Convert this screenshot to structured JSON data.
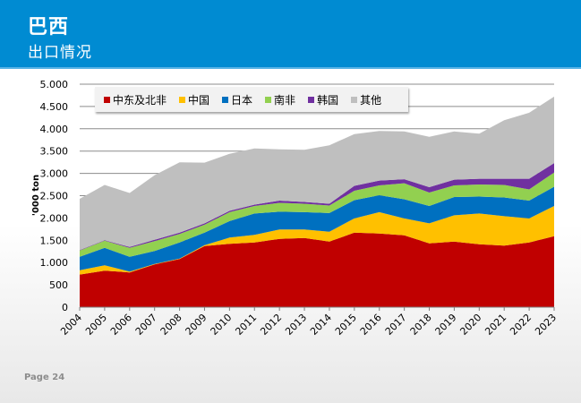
{
  "header": {
    "title": "巴西",
    "subtitle": "出口情况"
  },
  "footer": {
    "page_label": "Page 24"
  },
  "colors": {
    "header_bg": "#008bd2",
    "series": [
      "#c00000",
      "#ffc000",
      "#0070c0",
      "#92d050",
      "#7030a0",
      "#bfbfbf"
    ]
  },
  "chart_data": {
    "type": "area",
    "stacked": true,
    "title": "",
    "xlabel": "",
    "ylabel": "'000 ton",
    "ylim": [
      0,
      5000
    ],
    "yticks": [
      0,
      500,
      1000,
      1500,
      2000,
      2500,
      3000,
      3500,
      4000,
      4500,
      5000
    ],
    "ytick_labels": [
      "0",
      "500",
      "1.000",
      "1.500",
      "2.000",
      "2.500",
      "3.000",
      "3.500",
      "4.000",
      "4.500",
      "5.000"
    ],
    "grid": true,
    "legend_position": "top-left",
    "categories": [
      "2004",
      "2005",
      "2006",
      "2007",
      "2008",
      "2009",
      "2010",
      "2011",
      "2012",
      "2013",
      "2014",
      "2015",
      "2016",
      "2017",
      "2018",
      "2019",
      "2020",
      "2021",
      "2022",
      "2023"
    ],
    "series": [
      {
        "name": "中东及北非",
        "color": "#c00000",
        "values": [
          730,
          820,
          780,
          960,
          1080,
          1370,
          1420,
          1450,
          1530,
          1550,
          1470,
          1670,
          1650,
          1610,
          1430,
          1470,
          1410,
          1380,
          1450,
          1590
        ]
      },
      {
        "name": "中国",
        "color": "#ffc000",
        "values": [
          100,
          120,
          20,
          10,
          10,
          20,
          140,
          170,
          210,
          190,
          220,
          320,
          480,
          380,
          450,
          590,
          690,
          660,
          540,
          680
        ]
      },
      {
        "name": "日本",
        "color": "#0070c0",
        "values": [
          300,
          390,
          330,
          290,
          360,
          280,
          370,
          480,
          400,
          390,
          420,
          410,
          380,
          430,
          390,
          410,
          380,
          420,
          400,
          430
        ]
      },
      {
        "name": "南非",
        "color": "#92d050",
        "values": [
          140,
          160,
          200,
          220,
          190,
          180,
          200,
          170,
          200,
          190,
          170,
          210,
          220,
          360,
          300,
          260,
          270,
          280,
          250,
          320
        ]
      },
      {
        "name": "韩国",
        "color": "#7030a0",
        "values": [
          10,
          10,
          20,
          30,
          30,
          30,
          30,
          30,
          50,
          40,
          40,
          110,
          110,
          90,
          120,
          130,
          130,
          140,
          240,
          210
        ]
      },
      {
        "name": "其他",
        "color": "#bfbfbf",
        "values": [
          1150,
          1240,
          1210,
          1450,
          1580,
          1360,
          1280,
          1260,
          1150,
          1170,
          1310,
          1160,
          1110,
          1070,
          1130,
          1080,
          1010,
          1310,
          1480,
          1490
        ]
      }
    ]
  }
}
